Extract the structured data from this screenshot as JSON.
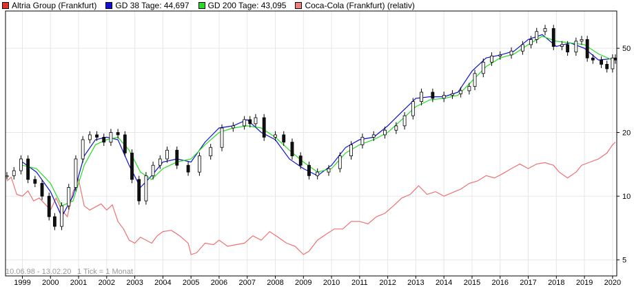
{
  "legend": [
    {
      "label": "Altria Group (Frankfurt)",
      "color": "#e03030"
    },
    {
      "label": "GD 38 Tage: 44,697",
      "color": "#1010d0"
    },
    {
      "label": "GD 200 Tage: 43,095",
      "color": "#22dd22"
    },
    {
      "label": "Coca-Cola (Frankfurt) (relativ)",
      "color": "#f08080"
    }
  ],
  "info": {
    "range": "10.06.98 - 13.02.20",
    "tick": "1 Tick = 1 Monat"
  },
  "chart_data": {
    "type": "line",
    "scale": "log",
    "grid": true,
    "ylim": [
      4.2,
      75
    ],
    "xlim": [
      1998.4,
      2020.15
    ],
    "x_ticks": [
      "1999",
      "2000",
      "2001",
      "2002",
      "2003",
      "2004",
      "2005",
      "2006",
      "2007",
      "2008",
      "2009",
      "2010",
      "2011",
      "2012",
      "2013",
      "2014",
      "2015",
      "2016",
      "2017",
      "2018",
      "2019",
      "2020"
    ],
    "y_ticks": [
      {
        "value": 50,
        "label": "50"
      },
      {
        "value": 20,
        "label": "20"
      },
      {
        "value": 10,
        "label": "10"
      },
      {
        "value": 5,
        "label": "5"
      }
    ],
    "series": [
      {
        "name": "Altria Group (Frankfurt)",
        "color": "#000000",
        "style": "candlestick",
        "x": [
          1998.45,
          1998.7,
          1998.95,
          1999.2,
          1999.45,
          1999.7,
          1999.95,
          2000.15,
          2000.4,
          2000.65,
          2000.9,
          2001.15,
          2001.4,
          2001.65,
          2001.9,
          2002.15,
          2002.4,
          2002.65,
          2002.9,
          2003.15,
          2003.4,
          2003.65,
          2003.9,
          2004.15,
          2004.5,
          2004.9,
          2005.3,
          2005.7,
          2006.1,
          2006.5,
          2006.9,
          2007.1,
          2007.3,
          2007.6,
          2008.0,
          2008.3,
          2008.6,
          2008.9,
          2009.2,
          2009.5,
          2009.9,
          2010.3,
          2010.7,
          2011.1,
          2011.5,
          2011.9,
          2012.3,
          2012.6,
          2012.9,
          2013.2,
          2013.6,
          2014.0,
          2014.3,
          2014.6,
          2014.9,
          2015.1,
          2015.4,
          2015.7,
          2016.0,
          2016.4,
          2016.8,
          2017.1,
          2017.3,
          2017.6,
          2017.9,
          2018.2,
          2018.4,
          2018.7,
          2018.9,
          2019.1,
          2019.3,
          2019.6,
          2019.8,
          2020.0,
          2020.1
        ],
        "values": [
          12.5,
          13.2,
          15.0,
          12.0,
          11.5,
          10.0,
          8.0,
          7.2,
          9.0,
          11.0,
          15.0,
          18.5,
          19.5,
          19.0,
          18.0,
          20.0,
          19.5,
          16.0,
          12.0,
          9.5,
          12.5,
          14.0,
          15.0,
          16.5,
          14.0,
          13.0,
          15.5,
          17.0,
          21.0,
          21.5,
          23.0,
          22.0,
          23.5,
          19.0,
          19.5,
          18.0,
          15.5,
          14.0,
          12.5,
          13.0,
          13.5,
          15.5,
          17.5,
          19.0,
          19.5,
          20.5,
          21.5,
          24.0,
          28.0,
          31.0,
          29.0,
          30.0,
          30.5,
          31.5,
          33.0,
          38.0,
          43.0,
          46.0,
          46.5,
          48.5,
          52.0,
          55.0,
          60.0,
          62.0,
          51.0,
          52.0,
          48.0,
          54.0,
          55.0,
          45.0,
          44.0,
          42.0,
          40.0,
          45.0,
          44.0
        ]
      },
      {
        "name": "GD 200 Tage: 43,095",
        "color": "#22dd22",
        "style": "line",
        "x": [
          1999.0,
          1999.5,
          2000.0,
          2000.4,
          2000.8,
          2001.2,
          2001.6,
          2002.0,
          2002.4,
          2002.8,
          2003.2,
          2003.6,
          2004.0,
          2004.5,
          2005.0,
          2005.5,
          2006.0,
          2006.5,
          2007.0,
          2007.5,
          2008.0,
          2008.5,
          2009.0,
          2009.5,
          2010.0,
          2010.5,
          2011.0,
          2011.5,
          2012.0,
          2012.5,
          2013.0,
          2013.5,
          2014.0,
          2014.5,
          2015.0,
          2015.5,
          2016.0,
          2016.5,
          2017.0,
          2017.5,
          2018.0,
          2018.5,
          2019.0,
          2019.5,
          2020.0
        ],
        "values": [
          14.0,
          13.5,
          11.5,
          9.0,
          9.5,
          14.0,
          17.5,
          18.5,
          19.0,
          16.5,
          13.0,
          12.0,
          13.5,
          14.5,
          15.0,
          17.5,
          20.0,
          21.0,
          21.5,
          21.0,
          19.0,
          16.5,
          14.5,
          13.0,
          13.5,
          16.0,
          17.5,
          18.5,
          20.0,
          23.0,
          26.5,
          28.5,
          29.0,
          30.0,
          35.0,
          41.0,
          45.0,
          47.0,
          52.0,
          57.0,
          54.0,
          53.0,
          52.0,
          47.0,
          44.0
        ]
      },
      {
        "name": "GD 38 Tage: 44,697",
        "color": "#1010d0",
        "style": "line",
        "x": [
          1999.0,
          1999.5,
          2000.0,
          2000.4,
          2000.8,
          2001.2,
          2001.6,
          2002.0,
          2002.4,
          2002.8,
          2003.2,
          2003.6,
          2004.0,
          2004.5,
          2005.0,
          2005.5,
          2006.0,
          2006.5,
          2007.0,
          2007.5,
          2008.0,
          2008.5,
          2009.0,
          2009.5,
          2010.0,
          2010.5,
          2011.0,
          2011.5,
          2012.0,
          2012.5,
          2013.0,
          2013.5,
          2014.0,
          2014.5,
          2015.0,
          2015.5,
          2016.0,
          2016.5,
          2017.0,
          2017.5,
          2018.0,
          2018.5,
          2019.0,
          2019.5,
          2020.0
        ],
        "values": [
          14.5,
          13.0,
          10.5,
          8.0,
          10.0,
          15.5,
          18.5,
          19.0,
          18.5,
          14.0,
          11.0,
          12.5,
          14.5,
          15.0,
          14.5,
          18.0,
          21.0,
          21.5,
          23.0,
          20.0,
          18.5,
          15.0,
          13.5,
          12.5,
          14.0,
          17.0,
          18.5,
          19.0,
          21.5,
          25.0,
          29.0,
          29.5,
          29.5,
          31.0,
          39.0,
          45.0,
          46.5,
          48.5,
          55.0,
          58.0,
          51.0,
          53.0,
          50.0,
          44.0,
          44.7
        ]
      },
      {
        "name": "Coca-Cola (Frankfurt) (relativ)",
        "color": "#f07070",
        "style": "line",
        "x": [
          1998.45,
          1998.6,
          1998.8,
          1999.0,
          1999.2,
          1999.4,
          1999.6,
          1999.8,
          2000.0,
          2000.2,
          2000.4,
          2000.6,
          2000.8,
          2001.0,
          2001.2,
          2001.4,
          2001.6,
          2001.8,
          2002.0,
          2002.2,
          2002.4,
          2002.6,
          2002.8,
          2003.0,
          2003.2,
          2003.4,
          2003.6,
          2003.8,
          2004.0,
          2004.3,
          2004.6,
          2004.9,
          2005.0,
          2005.2,
          2005.5,
          2005.8,
          2006.0,
          2006.3,
          2006.6,
          2006.9,
          2007.2,
          2007.5,
          2007.8,
          2008.1,
          2008.4,
          2008.7,
          2009.0,
          2009.2,
          2009.5,
          2009.8,
          2010.1,
          2010.4,
          2010.7,
          2011.0,
          2011.3,
          2011.6,
          2011.9,
          2012.2,
          2012.5,
          2012.8,
          2013.1,
          2013.4,
          2013.7,
          2014.0,
          2014.3,
          2014.6,
          2014.9,
          2015.2,
          2015.5,
          2015.8,
          2016.1,
          2016.4,
          2016.7,
          2017.0,
          2017.3,
          2017.6,
          2017.9,
          2018.1,
          2018.4,
          2018.7,
          2018.9,
          2019.2,
          2019.5,
          2019.8,
          2020.0,
          2020.1
        ],
        "values": [
          11.8,
          12.3,
          10.2,
          10.0,
          10.6,
          9.5,
          9.8,
          9.2,
          8.6,
          9.8,
          8.6,
          8.0,
          10.5,
          12.0,
          9.0,
          8.6,
          8.9,
          9.2,
          8.6,
          9.1,
          7.6,
          7.0,
          6.2,
          6.0,
          6.4,
          6.2,
          6.0,
          6.5,
          6.8,
          6.9,
          6.5,
          6.0,
          5.3,
          5.4,
          6.0,
          5.9,
          6.2,
          5.8,
          5.9,
          6.0,
          6.5,
          6.2,
          6.8,
          6.4,
          6.0,
          5.8,
          5.3,
          5.5,
          6.2,
          6.6,
          7.0,
          7.0,
          7.6,
          7.6,
          7.4,
          8.0,
          8.3,
          9.0,
          9.8,
          10.2,
          11.2,
          10.2,
          10.5,
          10.0,
          10.4,
          10.8,
          11.5,
          11.8,
          12.5,
          12.2,
          12.8,
          13.5,
          14.2,
          13.5,
          14.2,
          14.4,
          14.0,
          13.0,
          12.2,
          13.0,
          14.0,
          14.5,
          15.0,
          16.0,
          17.5,
          18.0
        ]
      }
    ]
  }
}
